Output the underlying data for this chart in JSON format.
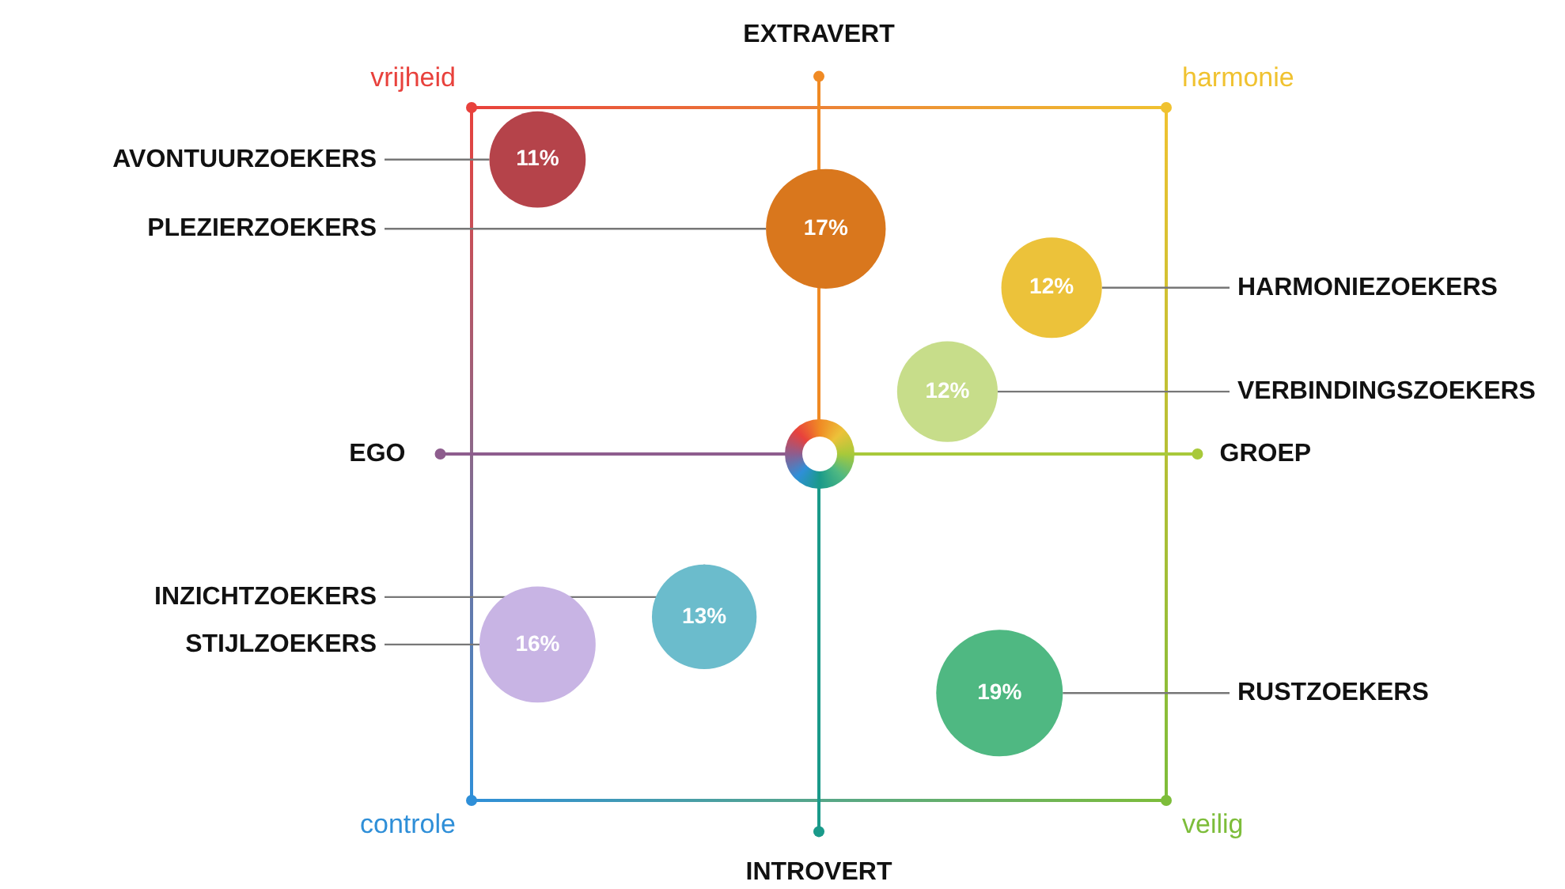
{
  "chart_data": {
    "type": "other",
    "categories": [
      "AVONTUURZOEKERS",
      "PLEZIERZOEKERS",
      "HARMONIEZOEKERS",
      "VERBINDINGSZOEKERS",
      "INZICHTZOEKERS",
      "STIJLZOEKERS",
      "RUSTZOEKERS"
    ],
    "values": [
      11,
      17,
      12,
      12,
      13,
      16,
      19
    ],
    "value_labels": [
      "11%",
      "17%",
      "12%",
      "12%",
      "13%",
      "16%",
      "19%"
    ],
    "colors": [
      "#b5434a",
      "#d9771d",
      "#ecc23a",
      "#c7dd8a",
      "#6bbccc",
      "#c8b4e4",
      "#4fb882"
    ],
    "annotations": [
      "vrijheid",
      "harmonie",
      "controle",
      "veilig",
      "EXTRAVERT",
      "INTROVERT",
      "EGO",
      "GROEP"
    ]
  }
}
